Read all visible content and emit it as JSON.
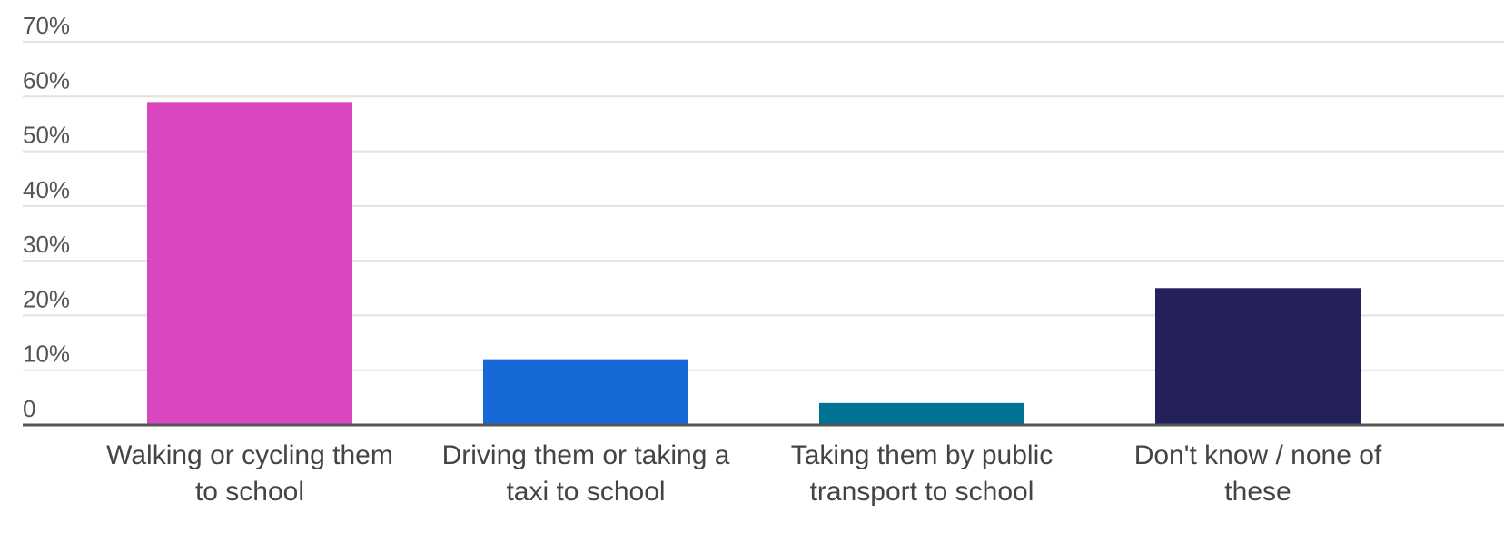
{
  "chart_data": {
    "type": "bar",
    "categories": [
      [
        "Walking or cycling them",
        "to school"
      ],
      [
        "Driving them or taking a",
        "taxi to school"
      ],
      [
        "Taking them by public",
        "transport to school"
      ],
      [
        "Don't know / none of",
        "these"
      ]
    ],
    "values": [
      59,
      12,
      4,
      25
    ],
    "bar_colors": [
      "#d946c0",
      "#1769d8",
      "#007394",
      "#23205a"
    ],
    "ylim": [
      0,
      70
    ],
    "yticks": [
      0,
      10,
      20,
      30,
      40,
      50,
      60,
      70
    ],
    "ytick_labels": [
      "0",
      "10%",
      "20%",
      "30%",
      "40%",
      "50%",
      "60%",
      "70%"
    ],
    "grid": true,
    "legend": "none"
  }
}
